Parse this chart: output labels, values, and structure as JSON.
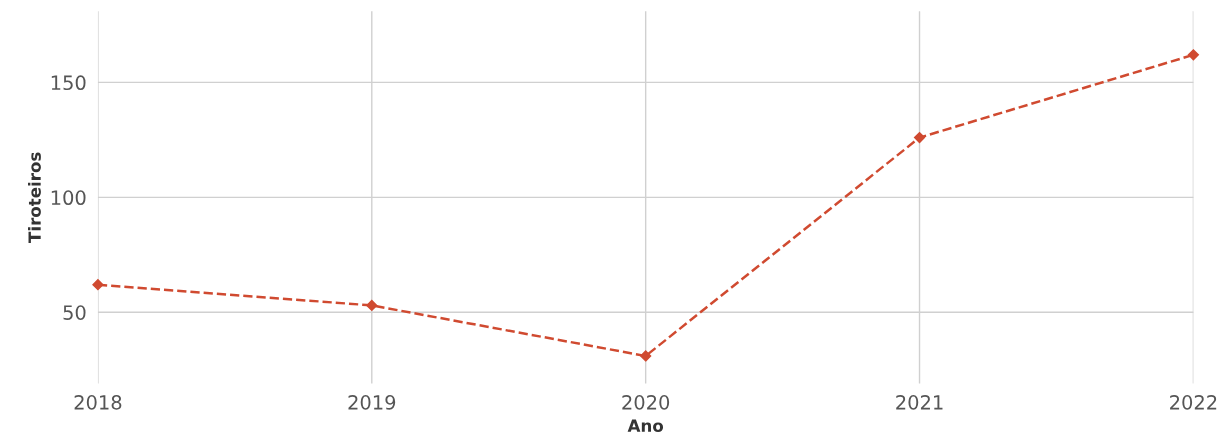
{
  "chart_data": {
    "type": "line",
    "xlabel": "Ano",
    "ylabel": "Tiroteiros",
    "x": [
      2018,
      2019,
      2020,
      2021,
      2022
    ],
    "series": [
      {
        "color": "#d04a30",
        "values": [
          62,
          53,
          31,
          126,
          162
        ]
      }
    ],
    "xlim": [
      2018,
      2022
    ],
    "xticks": [
      2018,
      2019,
      2020,
      2021,
      2022
    ],
    "ylim": [
      19,
      181
    ],
    "yticks": [
      50,
      100,
      150
    ],
    "grid": true,
    "marker": "diamond",
    "line_style": "dashed",
    "legend": false
  }
}
